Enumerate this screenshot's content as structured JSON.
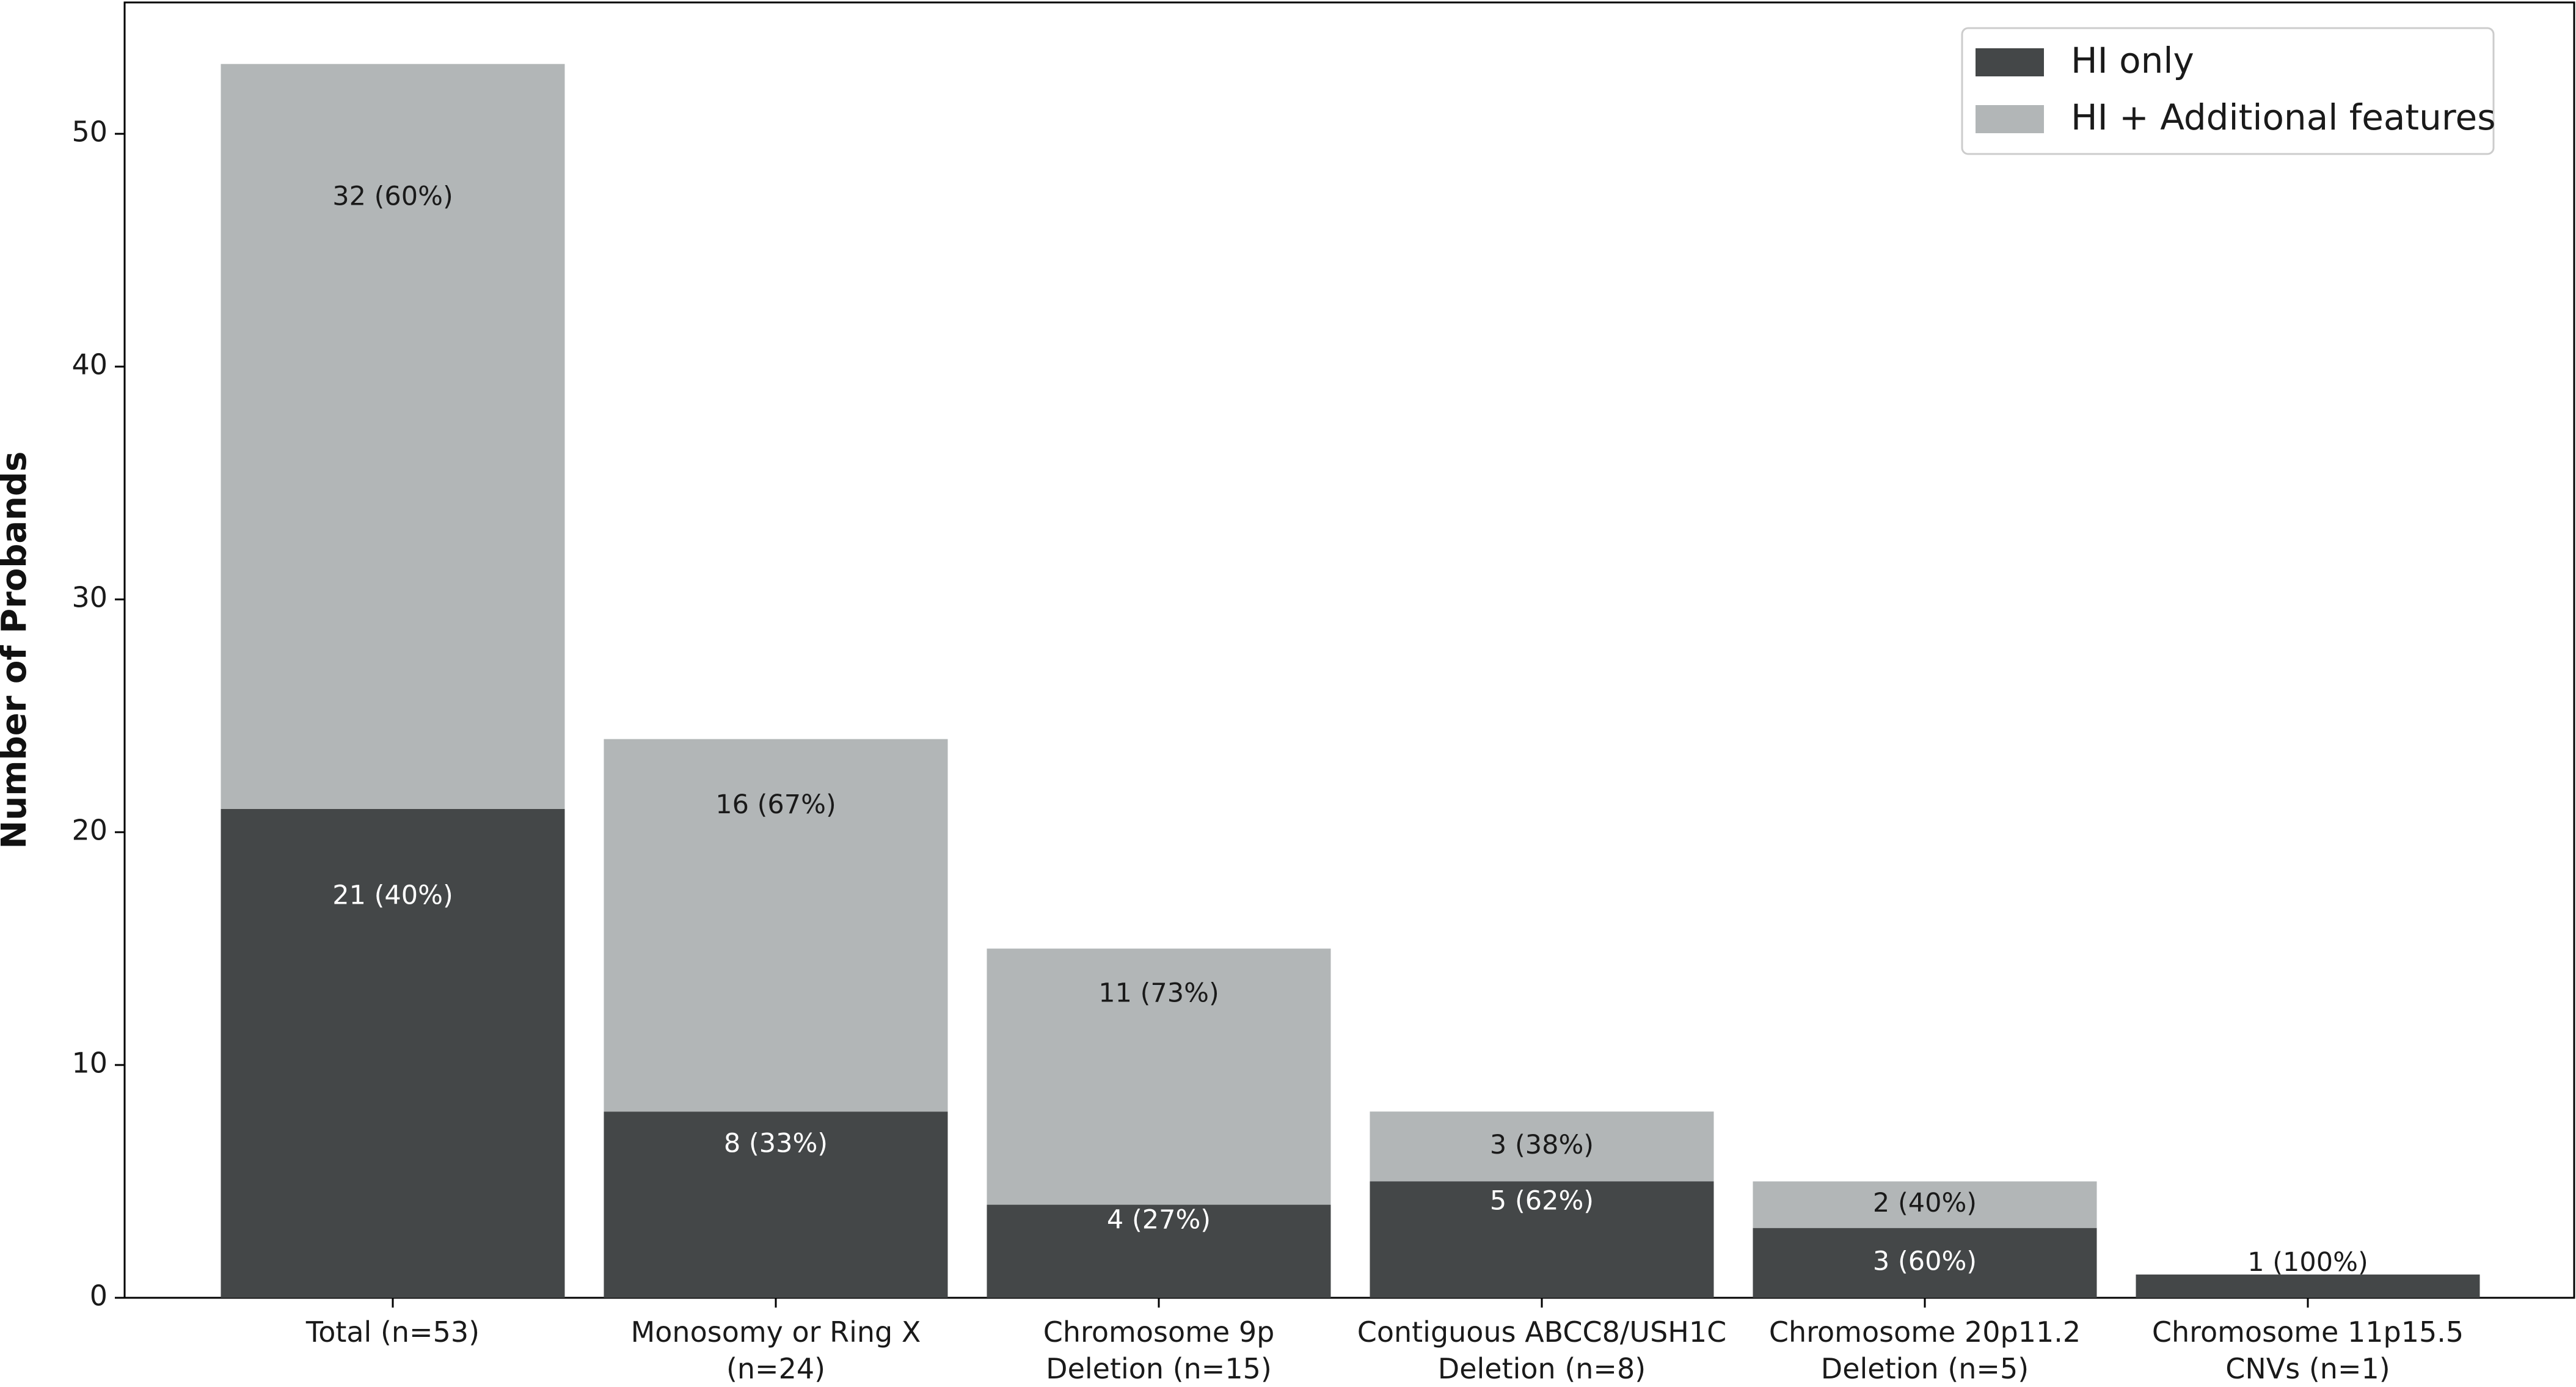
{
  "chart_data": {
    "type": "bar",
    "stacked": true,
    "title": "",
    "xlabel": "",
    "ylabel": "Number of Probands",
    "ylim": [
      0,
      55
    ],
    "yticks": [
      0,
      10,
      20,
      30,
      40,
      50
    ],
    "grid": false,
    "legend_position": "top-right",
    "categories": [
      [
        "Total (n=53)"
      ],
      [
        "Monosomy or Ring X",
        "(n=24)"
      ],
      [
        "Chromosome 9p",
        "Deletion (n=15)"
      ],
      [
        "Contiguous ABCC8/USH1C",
        "Deletion (n=8)"
      ],
      [
        "Chromosome 20p11.2",
        "Deletion (n=5)"
      ],
      [
        "Chromosome 11p15.5",
        "CNVs (n=1)"
      ]
    ],
    "series": [
      {
        "name": "HI only",
        "color": "#444748",
        "label_color": "#ffffff",
        "values": [
          21,
          8,
          4,
          5,
          3,
          1
        ],
        "labels": [
          "21 (40%)",
          "8 (33%)",
          "4 (27%)",
          "5 (62%)",
          "3 (60%)",
          "1 (100%)"
        ]
      },
      {
        "name": "HI + Additional features",
        "color": "#b2b6b7",
        "label_color": "#1a1a1a",
        "values": [
          32,
          16,
          11,
          3,
          2,
          0
        ],
        "labels": [
          "32 (60%)",
          "16 (67%)",
          "11 (73%)",
          "3 (38%)",
          "2 (40%)",
          ""
        ]
      }
    ]
  }
}
